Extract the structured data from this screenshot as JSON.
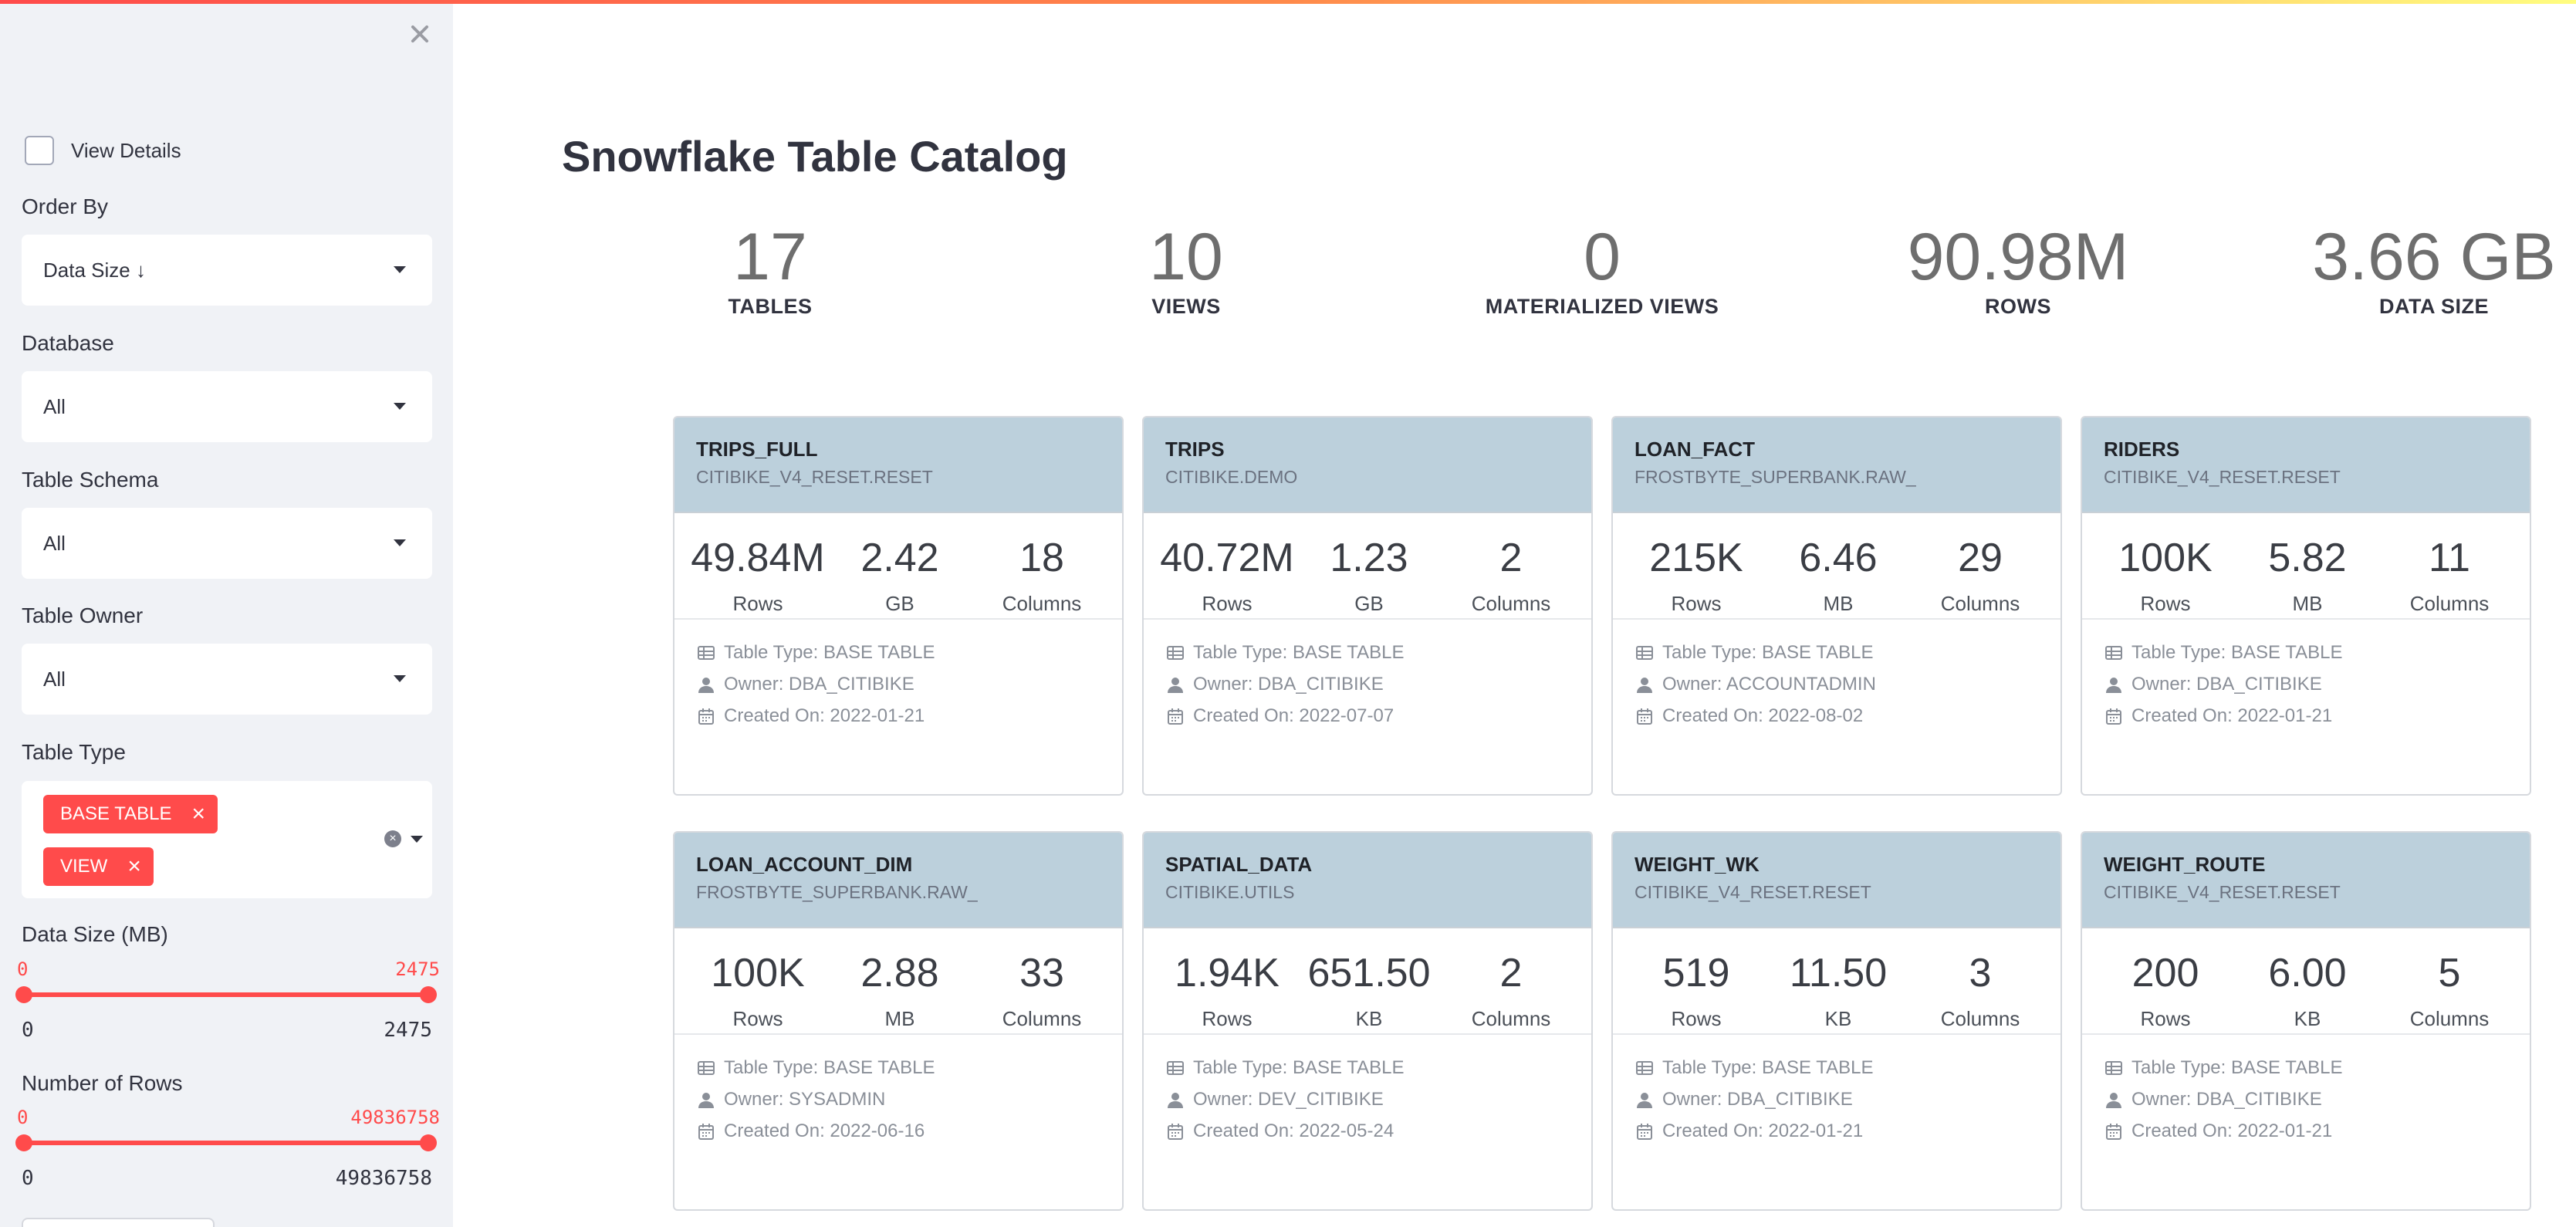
{
  "sidebar": {
    "view_details_label": "View Details",
    "order_by": {
      "label": "Order By",
      "value": "Data Size ↓"
    },
    "database": {
      "label": "Database",
      "value": "All"
    },
    "table_schema": {
      "label": "Table Schema",
      "value": "All"
    },
    "table_owner": {
      "label": "Table Owner",
      "value": "All"
    },
    "table_type": {
      "label": "Table Type",
      "tags": [
        "BASE TABLE",
        "VIEW"
      ]
    },
    "data_size": {
      "label": "Data Size (MB)",
      "min": "0",
      "max": "2475",
      "range_min": "0",
      "range_max": "2475"
    },
    "num_rows": {
      "label": "Number of Rows",
      "min": "0",
      "max": "49836758",
      "range_min": "0",
      "range_max": "49836758"
    }
  },
  "main": {
    "title": "Snowflake Table Catalog",
    "stats": [
      {
        "value": "17",
        "label": "TABLES"
      },
      {
        "value": "10",
        "label": "VIEWS"
      },
      {
        "value": "0",
        "label": "MATERIALIZED VIEWS"
      },
      {
        "value": "90.98M",
        "label": "ROWS"
      },
      {
        "value": "3.66 GB",
        "label": "DATA SIZE"
      }
    ],
    "cards": [
      {
        "name": "TRIPS_FULL",
        "schema": "CITIBIKE_V4_RESET.RESET",
        "rows": "49.84M",
        "rows_label": "Rows",
        "size": "2.42",
        "size_unit": "GB",
        "columns": "18",
        "columns_label": "Columns",
        "type": "Table Type: BASE TABLE",
        "owner": "Owner: DBA_CITIBIKE",
        "created": "Created On: 2022-01-21"
      },
      {
        "name": "TRIPS",
        "schema": "CITIBIKE.DEMO",
        "rows": "40.72M",
        "rows_label": "Rows",
        "size": "1.23",
        "size_unit": "GB",
        "columns": "2",
        "columns_label": "Columns",
        "type": "Table Type: BASE TABLE",
        "owner": "Owner: DBA_CITIBIKE",
        "created": "Created On: 2022-07-07"
      },
      {
        "name": "LOAN_FACT",
        "schema": "FROSTBYTE_SUPERBANK.RAW_",
        "rows": "215K",
        "rows_label": "Rows",
        "size": "6.46",
        "size_unit": "MB",
        "columns": "29",
        "columns_label": "Columns",
        "type": "Table Type: BASE TABLE",
        "owner": "Owner: ACCOUNTADMIN",
        "created": "Created On: 2022-08-02"
      },
      {
        "name": "RIDERS",
        "schema": "CITIBIKE_V4_RESET.RESET",
        "rows": "100K",
        "rows_label": "Rows",
        "size": "5.82",
        "size_unit": "MB",
        "columns": "11",
        "columns_label": "Columns",
        "type": "Table Type: BASE TABLE",
        "owner": "Owner: DBA_CITIBIKE",
        "created": "Created On: 2022-01-21"
      },
      {
        "name": "LOAN_ACCOUNT_DIM",
        "schema": "FROSTBYTE_SUPERBANK.RAW_",
        "rows": "100K",
        "rows_label": "Rows",
        "size": "2.88",
        "size_unit": "MB",
        "columns": "33",
        "columns_label": "Columns",
        "type": "Table Type: BASE TABLE",
        "owner": "Owner: SYSADMIN",
        "created": "Created On: 2022-06-16"
      },
      {
        "name": "SPATIAL_DATA",
        "schema": "CITIBIKE.UTILS",
        "rows": "1.94K",
        "rows_label": "Rows",
        "size": "651.50",
        "size_unit": "KB",
        "columns": "2",
        "columns_label": "Columns",
        "type": "Table Type: BASE TABLE",
        "owner": "Owner: DEV_CITIBIKE",
        "created": "Created On: 2022-05-24"
      },
      {
        "name": "WEIGHT_WK",
        "schema": "CITIBIKE_V4_RESET.RESET",
        "rows": "519",
        "rows_label": "Rows",
        "size": "11.50",
        "size_unit": "KB",
        "columns": "3",
        "columns_label": "Columns",
        "type": "Table Type: BASE TABLE",
        "owner": "Owner: DBA_CITIBIKE",
        "created": "Created On: 2022-01-21"
      },
      {
        "name": "WEIGHT_ROUTE",
        "schema": "CITIBIKE_V4_RESET.RESET",
        "rows": "200",
        "rows_label": "Rows",
        "size": "6.00",
        "size_unit": "KB",
        "columns": "5",
        "columns_label": "Columns",
        "type": "Table Type: BASE TABLE",
        "owner": "Owner: DBA_CITIBIKE",
        "created": "Created On: 2022-01-21"
      }
    ]
  },
  "icons": {
    "close": "close-icon",
    "table": "table-icon",
    "user": "user-icon",
    "calendar": "calendar-icon"
  },
  "colors": {
    "accent": "#ff4b4b",
    "sidebar_bg": "#f0f2f6",
    "card_header": "#bcd0dc"
  }
}
